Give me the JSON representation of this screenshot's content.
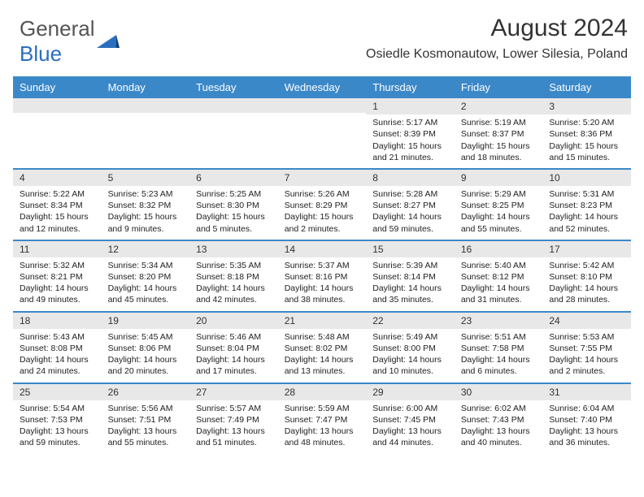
{
  "logo": {
    "text_gray": "General",
    "text_blue": "Blue"
  },
  "header": {
    "month_title": "August 2024",
    "location": "Osiedle Kosmonautow, Lower Silesia, Poland"
  },
  "colors": {
    "header_bg": "#3b88c9",
    "header_fg": "#ffffff",
    "daynum_bg": "#e8e8e8",
    "row_divider": "#3b88c9",
    "text": "#222222",
    "logo_gray": "#555555",
    "logo_blue": "#2a6fbf"
  },
  "day_headers": [
    "Sunday",
    "Monday",
    "Tuesday",
    "Wednesday",
    "Thursday",
    "Friday",
    "Saturday"
  ],
  "weeks": [
    [
      {
        "day": "",
        "sunrise": "",
        "sunset": "",
        "daylight": ""
      },
      {
        "day": "",
        "sunrise": "",
        "sunset": "",
        "daylight": ""
      },
      {
        "day": "",
        "sunrise": "",
        "sunset": "",
        "daylight": ""
      },
      {
        "day": "",
        "sunrise": "",
        "sunset": "",
        "daylight": ""
      },
      {
        "day": "1",
        "sunrise": "Sunrise: 5:17 AM",
        "sunset": "Sunset: 8:39 PM",
        "daylight": "Daylight: 15 hours and 21 minutes."
      },
      {
        "day": "2",
        "sunrise": "Sunrise: 5:19 AM",
        "sunset": "Sunset: 8:37 PM",
        "daylight": "Daylight: 15 hours and 18 minutes."
      },
      {
        "day": "3",
        "sunrise": "Sunrise: 5:20 AM",
        "sunset": "Sunset: 8:36 PM",
        "daylight": "Daylight: 15 hours and 15 minutes."
      }
    ],
    [
      {
        "day": "4",
        "sunrise": "Sunrise: 5:22 AM",
        "sunset": "Sunset: 8:34 PM",
        "daylight": "Daylight: 15 hours and 12 minutes."
      },
      {
        "day": "5",
        "sunrise": "Sunrise: 5:23 AM",
        "sunset": "Sunset: 8:32 PM",
        "daylight": "Daylight: 15 hours and 9 minutes."
      },
      {
        "day": "6",
        "sunrise": "Sunrise: 5:25 AM",
        "sunset": "Sunset: 8:30 PM",
        "daylight": "Daylight: 15 hours and 5 minutes."
      },
      {
        "day": "7",
        "sunrise": "Sunrise: 5:26 AM",
        "sunset": "Sunset: 8:29 PM",
        "daylight": "Daylight: 15 hours and 2 minutes."
      },
      {
        "day": "8",
        "sunrise": "Sunrise: 5:28 AM",
        "sunset": "Sunset: 8:27 PM",
        "daylight": "Daylight: 14 hours and 59 minutes."
      },
      {
        "day": "9",
        "sunrise": "Sunrise: 5:29 AM",
        "sunset": "Sunset: 8:25 PM",
        "daylight": "Daylight: 14 hours and 55 minutes."
      },
      {
        "day": "10",
        "sunrise": "Sunrise: 5:31 AM",
        "sunset": "Sunset: 8:23 PM",
        "daylight": "Daylight: 14 hours and 52 minutes."
      }
    ],
    [
      {
        "day": "11",
        "sunrise": "Sunrise: 5:32 AM",
        "sunset": "Sunset: 8:21 PM",
        "daylight": "Daylight: 14 hours and 49 minutes."
      },
      {
        "day": "12",
        "sunrise": "Sunrise: 5:34 AM",
        "sunset": "Sunset: 8:20 PM",
        "daylight": "Daylight: 14 hours and 45 minutes."
      },
      {
        "day": "13",
        "sunrise": "Sunrise: 5:35 AM",
        "sunset": "Sunset: 8:18 PM",
        "daylight": "Daylight: 14 hours and 42 minutes."
      },
      {
        "day": "14",
        "sunrise": "Sunrise: 5:37 AM",
        "sunset": "Sunset: 8:16 PM",
        "daylight": "Daylight: 14 hours and 38 minutes."
      },
      {
        "day": "15",
        "sunrise": "Sunrise: 5:39 AM",
        "sunset": "Sunset: 8:14 PM",
        "daylight": "Daylight: 14 hours and 35 minutes."
      },
      {
        "day": "16",
        "sunrise": "Sunrise: 5:40 AM",
        "sunset": "Sunset: 8:12 PM",
        "daylight": "Daylight: 14 hours and 31 minutes."
      },
      {
        "day": "17",
        "sunrise": "Sunrise: 5:42 AM",
        "sunset": "Sunset: 8:10 PM",
        "daylight": "Daylight: 14 hours and 28 minutes."
      }
    ],
    [
      {
        "day": "18",
        "sunrise": "Sunrise: 5:43 AM",
        "sunset": "Sunset: 8:08 PM",
        "daylight": "Daylight: 14 hours and 24 minutes."
      },
      {
        "day": "19",
        "sunrise": "Sunrise: 5:45 AM",
        "sunset": "Sunset: 8:06 PM",
        "daylight": "Daylight: 14 hours and 20 minutes."
      },
      {
        "day": "20",
        "sunrise": "Sunrise: 5:46 AM",
        "sunset": "Sunset: 8:04 PM",
        "daylight": "Daylight: 14 hours and 17 minutes."
      },
      {
        "day": "21",
        "sunrise": "Sunrise: 5:48 AM",
        "sunset": "Sunset: 8:02 PM",
        "daylight": "Daylight: 14 hours and 13 minutes."
      },
      {
        "day": "22",
        "sunrise": "Sunrise: 5:49 AM",
        "sunset": "Sunset: 8:00 PM",
        "daylight": "Daylight: 14 hours and 10 minutes."
      },
      {
        "day": "23",
        "sunrise": "Sunrise: 5:51 AM",
        "sunset": "Sunset: 7:58 PM",
        "daylight": "Daylight: 14 hours and 6 minutes."
      },
      {
        "day": "24",
        "sunrise": "Sunrise: 5:53 AM",
        "sunset": "Sunset: 7:55 PM",
        "daylight": "Daylight: 14 hours and 2 minutes."
      }
    ],
    [
      {
        "day": "25",
        "sunrise": "Sunrise: 5:54 AM",
        "sunset": "Sunset: 7:53 PM",
        "daylight": "Daylight: 13 hours and 59 minutes."
      },
      {
        "day": "26",
        "sunrise": "Sunrise: 5:56 AM",
        "sunset": "Sunset: 7:51 PM",
        "daylight": "Daylight: 13 hours and 55 minutes."
      },
      {
        "day": "27",
        "sunrise": "Sunrise: 5:57 AM",
        "sunset": "Sunset: 7:49 PM",
        "daylight": "Daylight: 13 hours and 51 minutes."
      },
      {
        "day": "28",
        "sunrise": "Sunrise: 5:59 AM",
        "sunset": "Sunset: 7:47 PM",
        "daylight": "Daylight: 13 hours and 48 minutes."
      },
      {
        "day": "29",
        "sunrise": "Sunrise: 6:00 AM",
        "sunset": "Sunset: 7:45 PM",
        "daylight": "Daylight: 13 hours and 44 minutes."
      },
      {
        "day": "30",
        "sunrise": "Sunrise: 6:02 AM",
        "sunset": "Sunset: 7:43 PM",
        "daylight": "Daylight: 13 hours and 40 minutes."
      },
      {
        "day": "31",
        "sunrise": "Sunrise: 6:04 AM",
        "sunset": "Sunset: 7:40 PM",
        "daylight": "Daylight: 13 hours and 36 minutes."
      }
    ]
  ]
}
